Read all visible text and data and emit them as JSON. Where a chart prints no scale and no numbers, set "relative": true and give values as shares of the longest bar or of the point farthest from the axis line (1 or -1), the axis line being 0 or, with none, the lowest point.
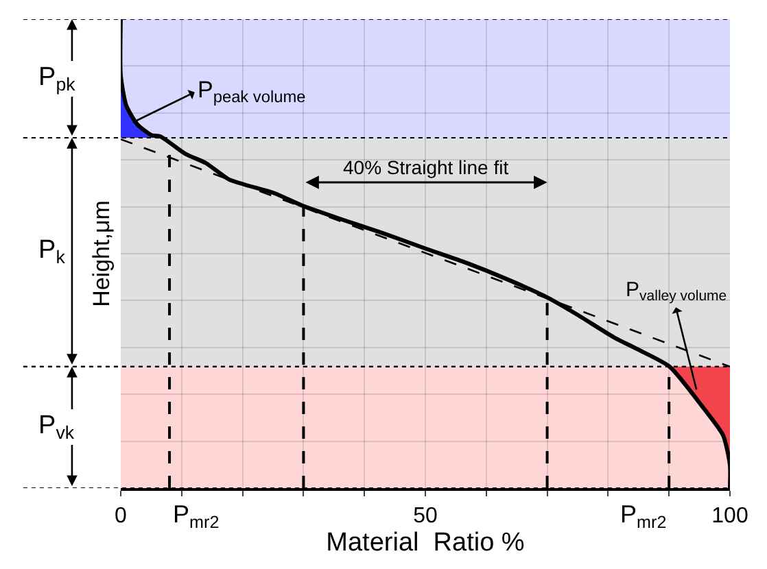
{
  "chart_data": {
    "type": "line",
    "relative": true,
    "xlabel": "Material  Ratio %",
    "ylabel": "Height,μm",
    "xlim": [
      0,
      100
    ],
    "xticks": [
      0,
      {
        "value": 10,
        "label": null
      },
      {
        "value": 20,
        "label": null
      },
      {
        "value": 30,
        "label": null
      },
      {
        "value": 40,
        "label": null
      },
      50,
      {
        "value": 60,
        "label": null
      },
      {
        "value": 70,
        "label": null
      },
      {
        "value": 80,
        "label": null
      },
      {
        "value": 90,
        "label": null
      },
      100
    ],
    "tick_labels": "x",
    "grid": true,
    "series": [
      {
        "type": "area",
        "color": "#3333ff",
        "x": [
          0,
          0.9,
          2.7,
          5,
          6.5,
          0
        ],
        "values": [
          0.88,
          0.816,
          0.776,
          0.753,
          0.747,
          0.747
        ]
      },
      {
        "type": "area",
        "color": "#f2444c",
        "x": [
          90.1,
          95.7,
          98.9,
          100,
          100
        ],
        "values": [
          0.259,
          0.17,
          0.112,
          0.049,
          0.259
        ]
      },
      {
        "color": "#000000",
        "line_style": "solid",
        "x": [
          0,
          0,
          0.9,
          2.7,
          5,
          6.5,
          10.6,
          14,
          17.8,
          25.2,
          29.7,
          36.5,
          43.2,
          50,
          56.8,
          63.5,
          69.8,
          74.8,
          80.9,
          85,
          90.1,
          95.7,
          98.9,
          100,
          100
        ],
        "values": [
          1,
          0.88,
          0.816,
          0.776,
          0.753,
          0.75,
          0.713,
          0.693,
          0.658,
          0.629,
          0.603,
          0.572,
          0.543,
          0.511,
          0.48,
          0.445,
          0.408,
          0.371,
          0.322,
          0.295,
          0.259,
          0.17,
          0.112,
          0.049,
          0
        ]
      },
      {
        "color": "#000000",
        "line_style": "dashed",
        "x": [
          0,
          100
        ],
        "values": [
          0.744,
          0.259
        ]
      }
    ],
    "bands": [
      {
        "axis": "y",
        "from": 0.747,
        "to": 1,
        "label": "P$_{pk}$",
        "color": "#d9d9ff"
      },
      {
        "axis": "y",
        "from": 0.259,
        "to": 0.747,
        "label": "P$_{k}$",
        "color": "#e0e0e0"
      },
      {
        "axis": "y",
        "from": 0,
        "to": 0.259,
        "label": "P$_{vk}$",
        "color": "#ffd6d6"
      }
    ],
    "ref_lines": [
      {
        "axis": "x",
        "value": 8,
        "label": "P$_{mr2}$",
        "line_style": "dashed"
      },
      {
        "axis": "x",
        "value": 30,
        "label": null,
        "line_style": "dashed"
      },
      {
        "axis": "x",
        "value": 70,
        "label": null,
        "line_style": "dashed"
      },
      {
        "axis": "x",
        "value": 90,
        "label": "P$_{mr2}$",
        "line_style": "dashed"
      }
    ],
    "annotations": [
      "40% Straight line fit",
      {
        "text": "P$_{peak volume}$",
        "x": 2,
        "y": 0.78
      },
      {
        "text": "P$_{valley volume}$",
        "x": 94.5,
        "y": 0.21
      }
    ]
  }
}
